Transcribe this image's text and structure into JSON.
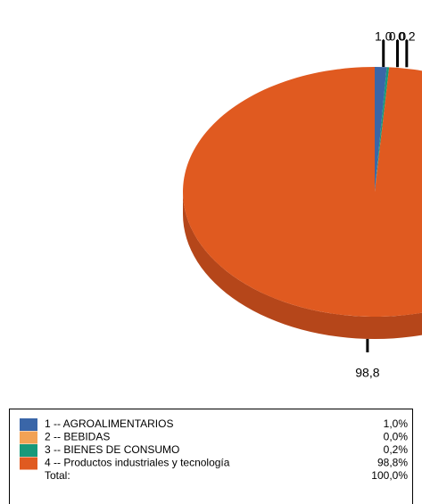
{
  "chart_data": {
    "type": "pie",
    "categories": [
      "1 -- AGROALIMENTARIOS",
      "2 -- BEBIDAS",
      "3 -- BIENES DE CONSUMO",
      "4 -- Productos industriales y tecnología"
    ],
    "values": [
      1.0,
      0.0,
      0.2,
      98.8
    ],
    "value_labels": [
      "1,0",
      "0,0",
      "0,2",
      "98,8"
    ],
    "legend_value_labels": [
      "1,0%",
      "0,0%",
      "0,2%",
      "98,8%"
    ],
    "colors": [
      "#3a66a8",
      "#f2a255",
      "#17997a",
      "#e05a20"
    ],
    "side_colors": [
      "#2c4f84",
      "#c07e3e",
      "#117560",
      "#b5461a"
    ],
    "total_label": "Total:",
    "total_value_label": "100,0%"
  }
}
